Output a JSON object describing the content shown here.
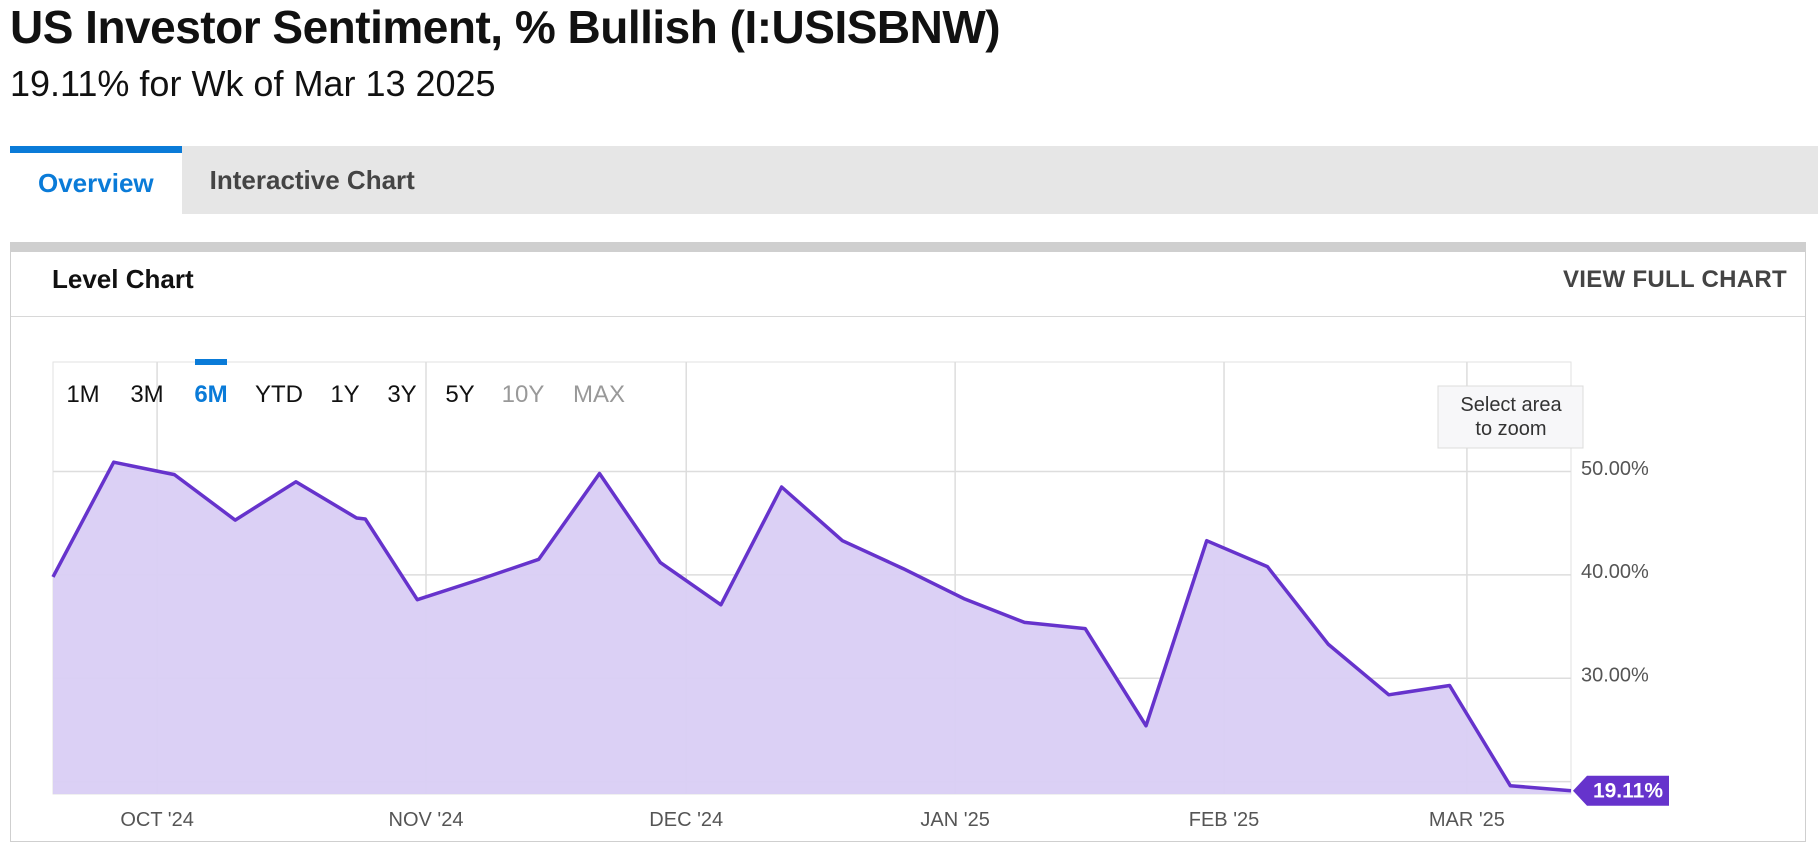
{
  "header": {
    "title": "US Investor Sentiment, % Bullish (I:USISBNW)",
    "subtitle": "19.11% for Wk of Mar 13 2025"
  },
  "tabs": [
    {
      "label": "Overview",
      "active": true
    },
    {
      "label": "Interactive Chart",
      "active": false
    }
  ],
  "panel": {
    "title": "Level Chart",
    "view_full_label": "VIEW FULL CHART"
  },
  "range_buttons": [
    {
      "label": "1M",
      "state": "enabled"
    },
    {
      "label": "3M",
      "state": "enabled"
    },
    {
      "label": "6M",
      "state": "selected"
    },
    {
      "label": "YTD",
      "state": "enabled"
    },
    {
      "label": "1Y",
      "state": "enabled"
    },
    {
      "label": "3Y",
      "state": "enabled"
    },
    {
      "label": "5Y",
      "state": "enabled"
    },
    {
      "label": "10Y",
      "state": "disabled"
    },
    {
      "label": "MAX",
      "state": "disabled"
    }
  ],
  "zoom_hint": [
    "Select area",
    "to zoom"
  ],
  "colors": {
    "accent": "#0a7bd8",
    "line": "#6633cc",
    "fill": "#d9cdf4",
    "grid": "#dddddd",
    "disabled": "#999999"
  },
  "chart_data": {
    "type": "area",
    "x": [
      "2024-09-19",
      "2024-09-26",
      "2024-10-03",
      "2024-10-10",
      "2024-10-17",
      "2024-10-24",
      "2024-10-25",
      "2024-10-31",
      "2024-11-07",
      "2024-11-14",
      "2024-11-21",
      "2024-11-28",
      "2024-12-05",
      "2024-12-12",
      "2024-12-19",
      "2024-12-26",
      "2025-01-02",
      "2025-01-09",
      "2025-01-16",
      "2025-01-23",
      "2025-01-30",
      "2025-02-06",
      "2025-02-13",
      "2025-02-20",
      "2025-02-27",
      "2025-03-06",
      "2025-03-13"
    ],
    "y": [
      39.8,
      50.9,
      49.7,
      45.3,
      49.0,
      45.5,
      45.4,
      37.6,
      39.5,
      41.5,
      49.8,
      41.2,
      37.1,
      48.5,
      43.3,
      40.6,
      37.7,
      35.4,
      34.8,
      25.4,
      43.3,
      40.8,
      33.3,
      28.4,
      29.3,
      19.6,
      19.11
    ],
    "x_ticks": [
      {
        "date": "2024-10-01",
        "label": "OCT '24"
      },
      {
        "date": "2024-11-01",
        "label": "NOV '24"
      },
      {
        "date": "2024-12-01",
        "label": "DEC '24"
      },
      {
        "date": "2025-01-01",
        "label": "JAN '25"
      },
      {
        "date": "2025-02-01",
        "label": "FEB '25"
      },
      {
        "date": "2025-03-01",
        "label": "MAR '25"
      }
    ],
    "y_ticks": [
      {
        "value": 50,
        "label": "50.00%"
      },
      {
        "value": 40,
        "label": "40.00%"
      },
      {
        "value": 30,
        "label": "30.00%"
      }
    ],
    "ylim": [
      18.8,
      60.3
    ],
    "xlim": [
      "2024-09-19",
      "2025-03-13"
    ],
    "last_value_label": "19.11%",
    "grid": true
  }
}
